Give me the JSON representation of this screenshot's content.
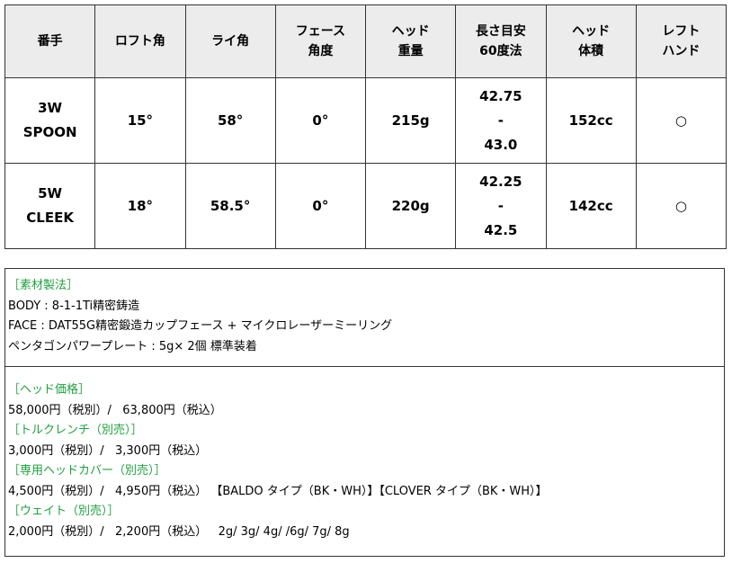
{
  "table": {
    "headers": [
      "番手",
      "ロフト角",
      "ライ角",
      "フェース\n角度",
      "ヘッド\n重量",
      "長さ目安\n60度法",
      "ヘッド\n体積",
      "レフト\nハンド"
    ],
    "rows": [
      [
        "3W\nSPOON",
        "15°",
        "58°",
        "0°",
        "215g",
        "42.75\n-\n43.0",
        "152cc",
        "○"
      ],
      [
        "5W\nCLEEK",
        "18°",
        "58.5°",
        "0°",
        "220g",
        "42.25\n-\n42.5",
        "142cc",
        "○"
      ]
    ]
  },
  "materials": {
    "heading": "［素材製法］",
    "lines": [
      "BODY : 8-1-1Ti精密鋳造",
      "FACE : DAT55G精密鍛造カップフェース + マイクロレーザーミーリング",
      "ペンタゴンパワープレート : 5g× 2個 標準装着"
    ]
  },
  "prices": [
    {
      "heading": "［ヘッド価格］",
      "line": "58,000円（税別）/   63,800円（税込）"
    },
    {
      "heading": "［トルクレンチ（別売）］",
      "line": "3,000円（税別）/   3,300円（税込）"
    },
    {
      "heading": "［専用ヘッドカバー（別売）］",
      "line": "4,500円（税別）/   4,950円（税込） 【BALDO タイプ（BK・WH）】【CLOVER タイプ（BK・WH）】"
    },
    {
      "heading": "［ウェイト（別売）］",
      "line": "2,000円（税別）/   2,200円（税込）   2g/ 3g/ 4g/ /6g/ 7g/ 8g"
    }
  ],
  "colors": {
    "heading_green": "#22a040",
    "header_bg": "#ececec"
  }
}
